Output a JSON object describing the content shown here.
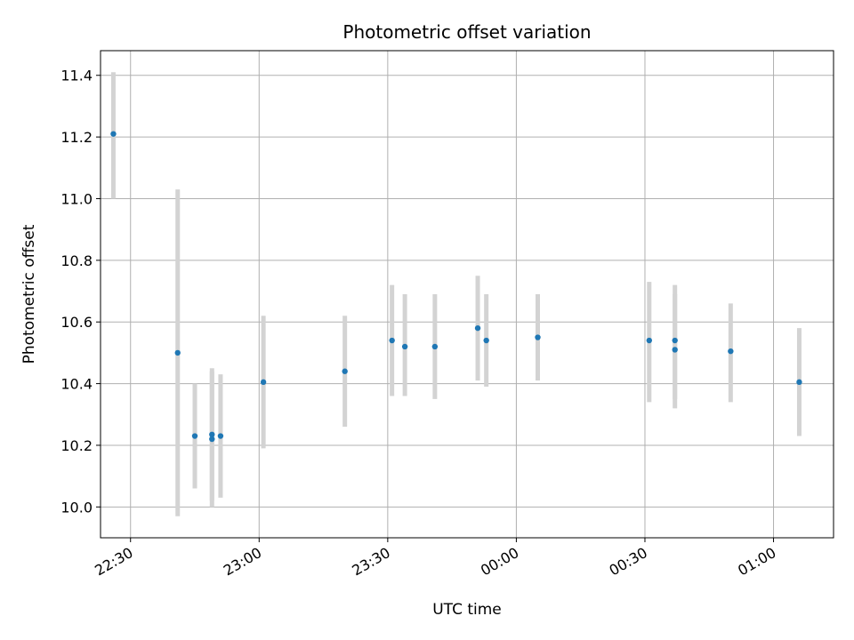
{
  "chart_data": {
    "type": "scatter",
    "title": "Photometric offset variation",
    "xlabel": "UTC time",
    "ylabel": "Photometric offset",
    "grid": true,
    "colors": {
      "points": "#1f77b4",
      "errorbars": "#d3d3d3",
      "grid": "#b0b0b0",
      "axes": "#000000"
    },
    "x_axis": {
      "kind": "time",
      "range": [
        "22:23",
        "01:14"
      ],
      "ticks": [
        "22:30",
        "23:00",
        "23:30",
        "00:00",
        "00:30",
        "01:00"
      ],
      "tick_rotation_deg": 30
    },
    "y_axis": {
      "range": [
        9.9,
        11.48
      ],
      "ticks": [
        "10.0",
        "10.2",
        "10.4",
        "10.6",
        "10.8",
        "11.0",
        "11.2",
        "11.4"
      ]
    },
    "points": [
      {
        "x": "22:26",
        "y": 11.21,
        "ylow": 11.0,
        "yhigh": 11.41
      },
      {
        "x": "22:41",
        "y": 10.5,
        "ylow": 9.97,
        "yhigh": 11.03
      },
      {
        "x": "22:45",
        "y": 10.23,
        "ylow": 10.06,
        "yhigh": 10.4
      },
      {
        "x": "22:49",
        "y": 10.235,
        "ylow": 10.02,
        "yhigh": 10.45
      },
      {
        "x": "22:49",
        "y": 10.22,
        "ylow": 10.0,
        "yhigh": 10.44
      },
      {
        "x": "22:51",
        "y": 10.23,
        "ylow": 10.03,
        "yhigh": 10.43
      },
      {
        "x": "23:01",
        "y": 10.405,
        "ylow": 10.19,
        "yhigh": 10.62
      },
      {
        "x": "23:20",
        "y": 10.44,
        "ylow": 10.26,
        "yhigh": 10.62
      },
      {
        "x": "23:31",
        "y": 10.54,
        "ylow": 10.36,
        "yhigh": 10.72
      },
      {
        "x": "23:34",
        "y": 10.52,
        "ylow": 10.36,
        "yhigh": 10.69
      },
      {
        "x": "23:41",
        "y": 10.52,
        "ylow": 10.35,
        "yhigh": 10.69
      },
      {
        "x": "23:51",
        "y": 10.58,
        "ylow": 10.41,
        "yhigh": 10.75
      },
      {
        "x": "23:53",
        "y": 10.54,
        "ylow": 10.39,
        "yhigh": 10.69
      },
      {
        "x": "00:05",
        "y": 10.55,
        "ylow": 10.41,
        "yhigh": 10.69
      },
      {
        "x": "00:31",
        "y": 10.54,
        "ylow": 10.34,
        "yhigh": 10.73
      },
      {
        "x": "00:37",
        "y": 10.51,
        "ylow": 10.32,
        "yhigh": 10.69
      },
      {
        "x": "00:37",
        "y": 10.54,
        "ylow": 10.35,
        "yhigh": 10.72
      },
      {
        "x": "00:50",
        "y": 10.505,
        "ylow": 10.34,
        "yhigh": 10.66
      },
      {
        "x": "01:06",
        "y": 10.405,
        "ylow": 10.23,
        "yhigh": 10.58
      }
    ]
  }
}
